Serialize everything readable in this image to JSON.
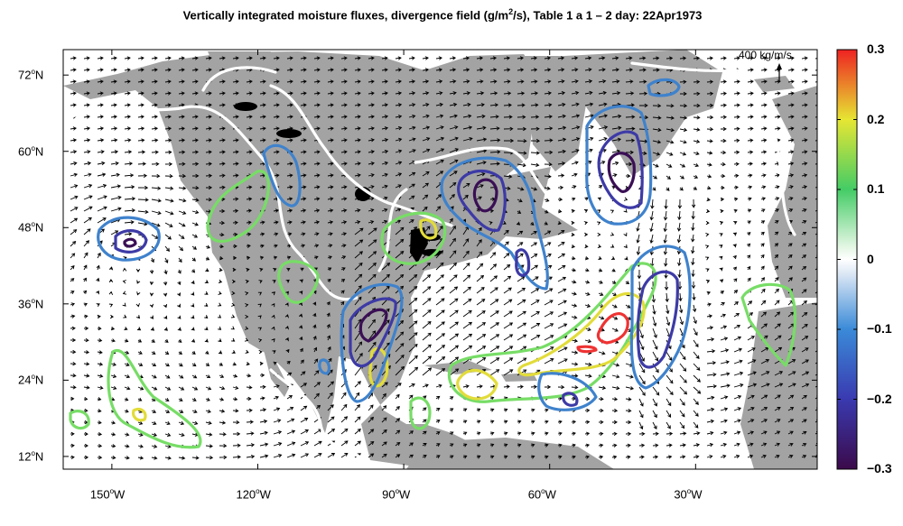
{
  "title_pre": "Vertically integrated moisture fluxes, divergence field (g/m",
  "title_sup": "2",
  "title_post": "/s), Table 1 a 1 – 2 day: 22Apr1973",
  "reference_vector": {
    "label": "400  kg/m/s",
    "magnitude": 400
  },
  "map": {
    "lon_range": [
      -160,
      -5
    ],
    "lat_range": [
      10,
      76
    ],
    "land_color": "#a3a3a3",
    "ocean_color": "#ffffff"
  },
  "axes": {
    "lat_ticks": [
      {
        "value": 72,
        "num": "72",
        "hem": "N"
      },
      {
        "value": 60,
        "num": "60",
        "hem": "N"
      },
      {
        "value": 48,
        "num": "48",
        "hem": "N"
      },
      {
        "value": 36,
        "num": "36",
        "hem": "N"
      },
      {
        "value": 24,
        "num": "24",
        "hem": "N"
      },
      {
        "value": 12,
        "num": "12",
        "hem": "N"
      }
    ],
    "lon_ticks": [
      {
        "value": -150,
        "num": "150",
        "hem": "W"
      },
      {
        "value": -120,
        "num": "120",
        "hem": "W"
      },
      {
        "value": -90,
        "num": "90",
        "hem": "W"
      },
      {
        "value": -60,
        "num": "60",
        "hem": "W"
      },
      {
        "value": -30,
        "num": "30",
        "hem": "W"
      }
    ]
  },
  "colorbar": {
    "min": -0.3,
    "max": 0.3,
    "tick_labels": [
      "0.3",
      "0.2",
      "0.1",
      "0",
      "−0.1",
      "−0.2",
      "−0.3"
    ],
    "tick_values": [
      0.3,
      0.2,
      0.1,
      0,
      -0.1,
      -0.2,
      -0.3
    ],
    "stops": [
      {
        "v": -0.3,
        "color": "#3b0a4a"
      },
      {
        "v": -0.2,
        "color": "#3a3ab0"
      },
      {
        "v": -0.1,
        "color": "#3a8ad8"
      },
      {
        "v": -0.02,
        "color": "#dde8f5"
      },
      {
        "v": 0,
        "color": "#ffffff"
      },
      {
        "v": 0.02,
        "color": "#e0f5e0"
      },
      {
        "v": 0.1,
        "color": "#44cc66"
      },
      {
        "v": 0.2,
        "color": "#e6e633"
      },
      {
        "v": 0.3,
        "color": "#ee2222"
      }
    ]
  },
  "contour_colors": {
    "zero": "#ffffff",
    "pos_01": "#77dd66",
    "pos_02": "#e2dc3a",
    "pos_03": "#ee3333",
    "neg_01": "#3f82cc",
    "neg_02": "#3d3aa6",
    "neg_03": "#3a0f55"
  }
}
